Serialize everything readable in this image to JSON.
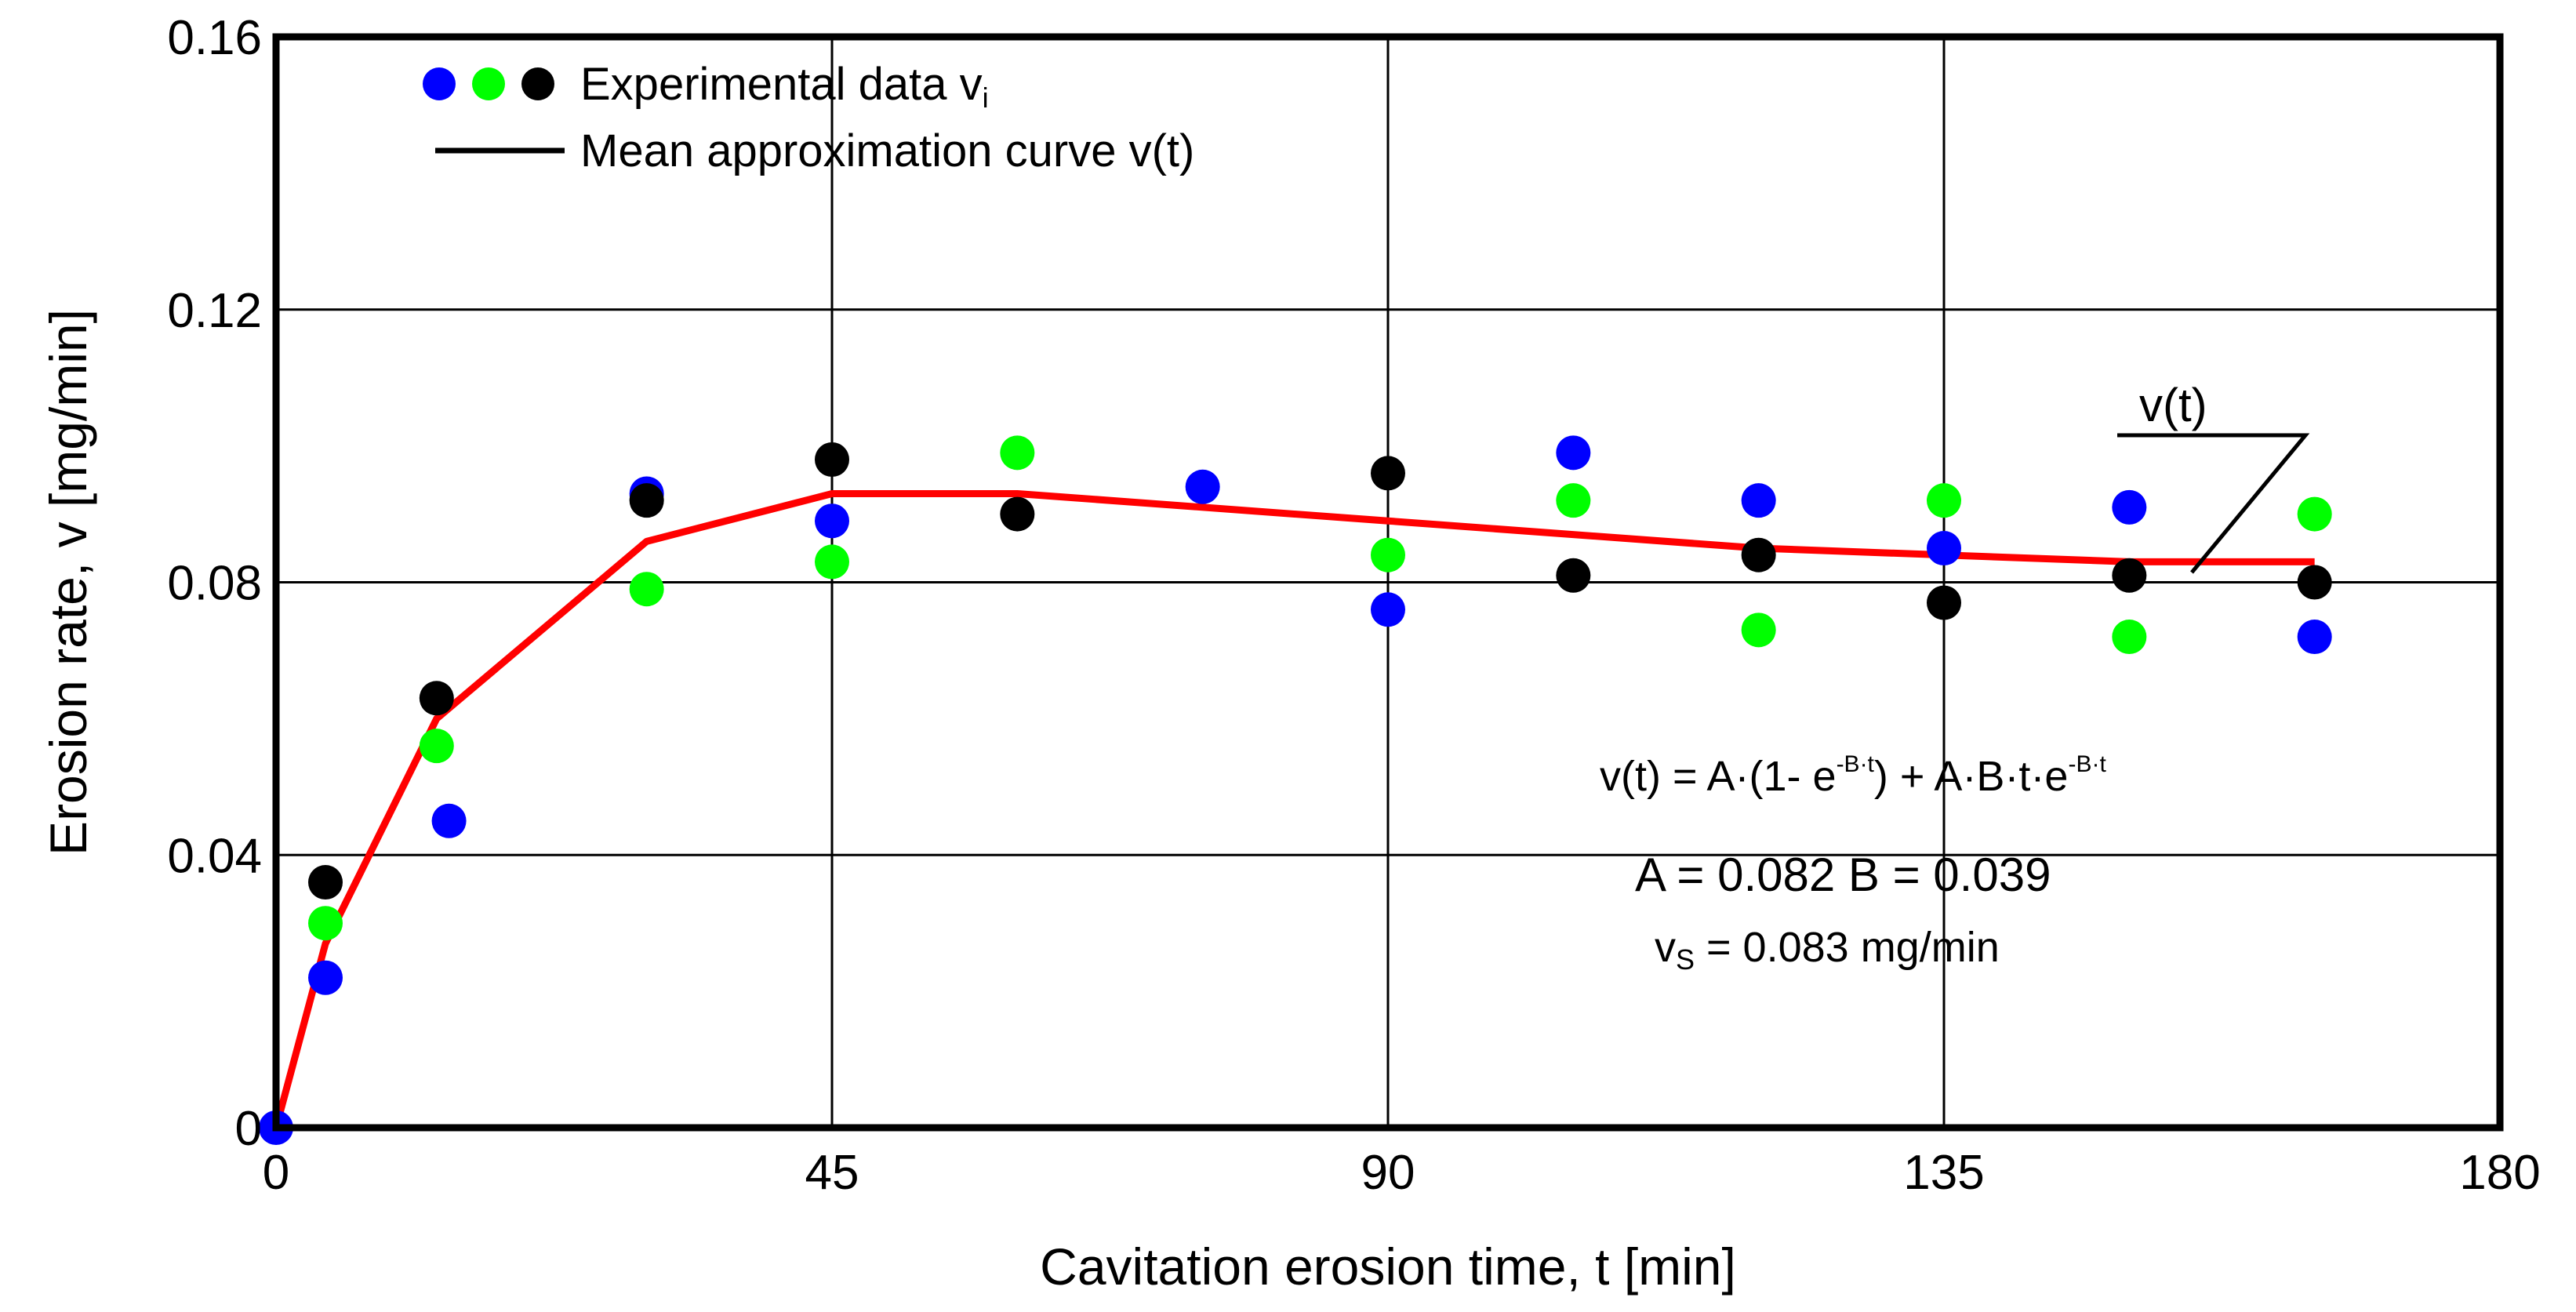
{
  "chart_data": {
    "type": "scatter",
    "xlabel": "Cavitation erosion time, t [min]",
    "ylabel": "Erosion rate, v [mg/min]",
    "xlim": [
      0,
      180
    ],
    "ylim": [
      0,
      0.16
    ],
    "x_ticks": [
      "0",
      "45",
      "90",
      "135",
      "180"
    ],
    "y_ticks": [
      "0",
      "0.04",
      "0.08",
      "0.12",
      "0.16"
    ],
    "x_tick_values": [
      0,
      45,
      90,
      135,
      180
    ],
    "y_tick_values": [
      0,
      0.04,
      0.08,
      0.12,
      0.16
    ],
    "grid": true,
    "legend": {
      "position": "top-left",
      "experimental_label": "Experimental data v",
      "experimental_sub": "i",
      "curve_label": "Mean approximation curve v(t)"
    },
    "series": [
      {
        "name": "Experimental data (blue)",
        "color": "#0000ff",
        "points": [
          [
            0,
            0
          ],
          [
            4,
            0.022
          ],
          [
            14,
            0.045
          ],
          [
            30,
            0.093
          ],
          [
            45,
            0.089
          ],
          [
            75,
            0.094
          ],
          [
            90,
            0.076
          ],
          [
            105,
            0.099
          ],
          [
            120,
            0.092
          ],
          [
            135,
            0.085
          ],
          [
            150,
            0.091
          ],
          [
            165,
            0.072
          ]
        ]
      },
      {
        "name": "Experimental data (green)",
        "color": "#00ff00",
        "points": [
          [
            4,
            0.03
          ],
          [
            13,
            0.056
          ],
          [
            30,
            0.079
          ],
          [
            45,
            0.083
          ],
          [
            60,
            0.099
          ],
          [
            90,
            0.084
          ],
          [
            105,
            0.092
          ],
          [
            120,
            0.073
          ],
          [
            135,
            0.092
          ],
          [
            150,
            0.072
          ],
          [
            165,
            0.09
          ]
        ]
      },
      {
        "name": "Experimental data (black)",
        "color": "#000000",
        "points": [
          [
            4,
            0.036
          ],
          [
            13,
            0.063
          ],
          [
            30,
            0.092
          ],
          [
            45,
            0.098
          ],
          [
            60,
            0.09
          ],
          [
            90,
            0.096
          ],
          [
            105,
            0.081
          ],
          [
            120,
            0.084
          ],
          [
            135,
            0.077
          ],
          [
            150,
            0.081
          ],
          [
            165,
            0.08
          ]
        ]
      },
      {
        "name": "Mean approximation curve v(t)",
        "type": "line",
        "color": "#ff0000",
        "points": [
          [
            0,
            0
          ],
          [
            4,
            0.027
          ],
          [
            13,
            0.06
          ],
          [
            30,
            0.086
          ],
          [
            45,
            0.093
          ],
          [
            60,
            0.093
          ],
          [
            90,
            0.089
          ],
          [
            120,
            0.085
          ],
          [
            150,
            0.083
          ],
          [
            165,
            0.083
          ]
        ]
      }
    ],
    "annotations": {
      "curve_label": "v(t)",
      "formula_prefix": "v(t) = A·(1- e",
      "formula_exp1": "-B·t",
      "formula_mid": ") + A·B·t·e",
      "formula_exp2": "-B·t",
      "params": "A = 0.082  B = 0.039",
      "vs_main": "v",
      "vs_sub": "S",
      "vs_rest": " = 0.083 mg/min"
    }
  }
}
